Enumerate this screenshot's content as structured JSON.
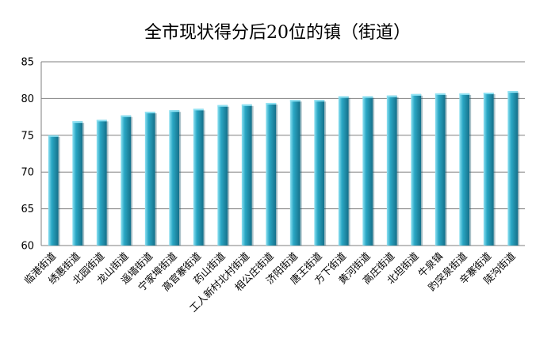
{
  "chart_data": {
    "type": "bar",
    "title": "全市现状得分后20位的镇（街道）",
    "xlabel": "",
    "ylabel": "",
    "ylim": [
      60,
      85
    ],
    "yticks": [
      60,
      65,
      70,
      75,
      80,
      85
    ],
    "grid": true,
    "legend": "none",
    "bar_color": "#2aa7c4",
    "bar_highlight": "#8fe2f3",
    "bar_shadow": "#15708a",
    "categories": [
      "临港街道",
      "绣惠街道",
      "北园街道",
      "龙山街道",
      "遥墙街道",
      "宁家埠街道",
      "高官寨街道",
      "药山街道",
      "工人新村北村街道",
      "相公庄街道",
      "济阳街道",
      "唐王街道",
      "方下街道",
      "黄河街道",
      "高庄街道",
      "北坦街道",
      "牛泉镇",
      "趵突泉街道",
      "辛寨街道",
      "陡沟街道"
    ],
    "values": [
      75.0,
      76.9,
      77.1,
      77.7,
      78.2,
      78.4,
      78.6,
      79.1,
      79.2,
      79.4,
      79.8,
      79.8,
      80.3,
      80.3,
      80.4,
      80.6,
      80.7,
      80.7,
      80.8,
      81.0
    ]
  }
}
